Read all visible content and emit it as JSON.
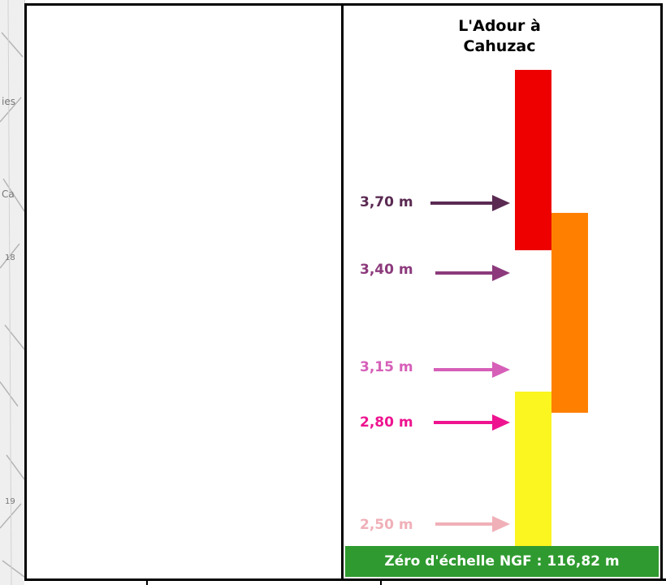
{
  "title": {
    "line1": "L'Adour à",
    "line2": "Cahuzac"
  },
  "map_labels": {
    "label1": "ies",
    "label2": "Ca",
    "label3": "18",
    "label4": "19"
  },
  "thresholds": [
    {
      "label": "3,70 m",
      "value": 3.7,
      "color": "#5a2a52"
    },
    {
      "label": "3,40 m",
      "value": 3.4,
      "color": "#8c3a7c"
    },
    {
      "label": "3,15 m",
      "value": 3.15,
      "color": "#d65fb8"
    },
    {
      "label": "2,80 m",
      "value": 2.8,
      "color": "#ee1490"
    },
    {
      "label": "2,50 m",
      "value": 2.5,
      "color": "#f0b0b8"
    }
  ],
  "vigilance_bars": [
    {
      "level": "red",
      "color": "#ee0000"
    },
    {
      "level": "orange",
      "color": "#ff8000"
    },
    {
      "level": "yellow",
      "color": "#fbf520"
    }
  ],
  "footer": {
    "text": "Zéro d'échelle NGF : 116,82 m",
    "background": "#2f9a2f"
  }
}
